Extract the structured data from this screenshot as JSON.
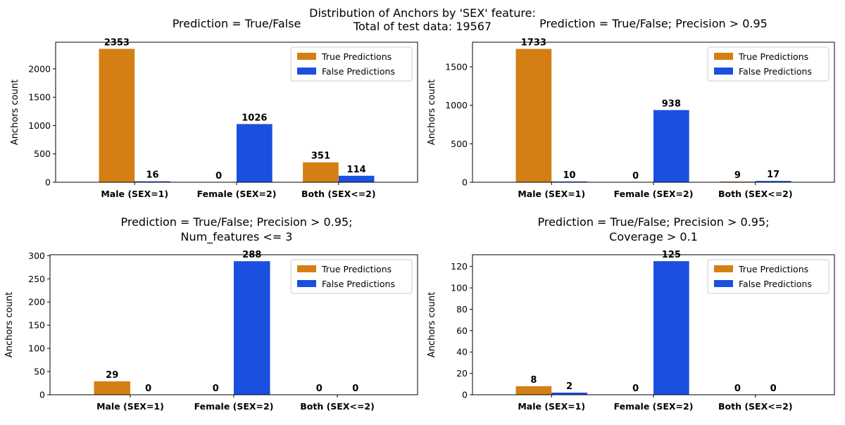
{
  "figure": {
    "suptitle_line1": "Distribution of Anchors by 'SEX' feature:",
    "suptitle_line2": "Total of test data: 19567"
  },
  "colors": {
    "true": "#d47f14",
    "false": "#1a4fe0"
  },
  "chart_data": [
    {
      "type": "bar",
      "title": [
        "Prediction = True/False"
      ],
      "categories": [
        "Male (SEX=1)",
        "Female (SEX=2)",
        "Both (SEX<=2)"
      ],
      "series": [
        {
          "name": "True Predictions",
          "values": [
            2353,
            0,
            351
          ]
        },
        {
          "name": "False Predictions",
          "values": [
            16,
            1026,
            114
          ]
        }
      ],
      "ylabel": "Anchors count",
      "ylim": [
        0,
        2470
      ],
      "yticks": [
        0,
        500,
        1000,
        1500,
        2000
      ],
      "legend": "top-right"
    },
    {
      "type": "bar",
      "title": [
        "Prediction = True/False; Precision > 0.95"
      ],
      "categories": [
        "Male (SEX=1)",
        "Female (SEX=2)",
        "Both (SEX<=2)"
      ],
      "series": [
        {
          "name": "True Predictions",
          "values": [
            1733,
            0,
            9
          ]
        },
        {
          "name": "False Predictions",
          "values": [
            10,
            938,
            17
          ]
        }
      ],
      "ylabel": "Anchors count",
      "ylim": [
        0,
        1820
      ],
      "yticks": [
        0,
        500,
        1000,
        1500
      ],
      "legend": "top-right"
    },
    {
      "type": "bar",
      "title": [
        "Prediction = True/False; Precision > 0.95;",
        "Num_features <= 3"
      ],
      "categories": [
        "Male (SEX=1)",
        "Female (SEX=2)",
        "Both (SEX<=2)"
      ],
      "series": [
        {
          "name": "True Predictions",
          "values": [
            29,
            0,
            0
          ]
        },
        {
          "name": "False Predictions",
          "values": [
            0,
            288,
            0
          ]
        }
      ],
      "ylabel": "Anchors count",
      "ylim": [
        0,
        302
      ],
      "yticks": [
        0,
        50,
        100,
        150,
        200,
        250,
        300
      ],
      "legend": "top-right"
    },
    {
      "type": "bar",
      "title": [
        "Prediction = True/False; Precision > 0.95;",
        "Coverage > 0.1"
      ],
      "categories": [
        "Male (SEX=1)",
        "Female (SEX=2)",
        "Both (SEX<=2)"
      ],
      "series": [
        {
          "name": "True Predictions",
          "values": [
            8,
            0,
            0
          ]
        },
        {
          "name": "False Predictions",
          "values": [
            2,
            125,
            0
          ]
        }
      ],
      "ylabel": "Anchors count",
      "ylim": [
        0,
        131
      ],
      "yticks": [
        0,
        20,
        40,
        60,
        80,
        100,
        120
      ],
      "legend": "top-right"
    }
  ]
}
